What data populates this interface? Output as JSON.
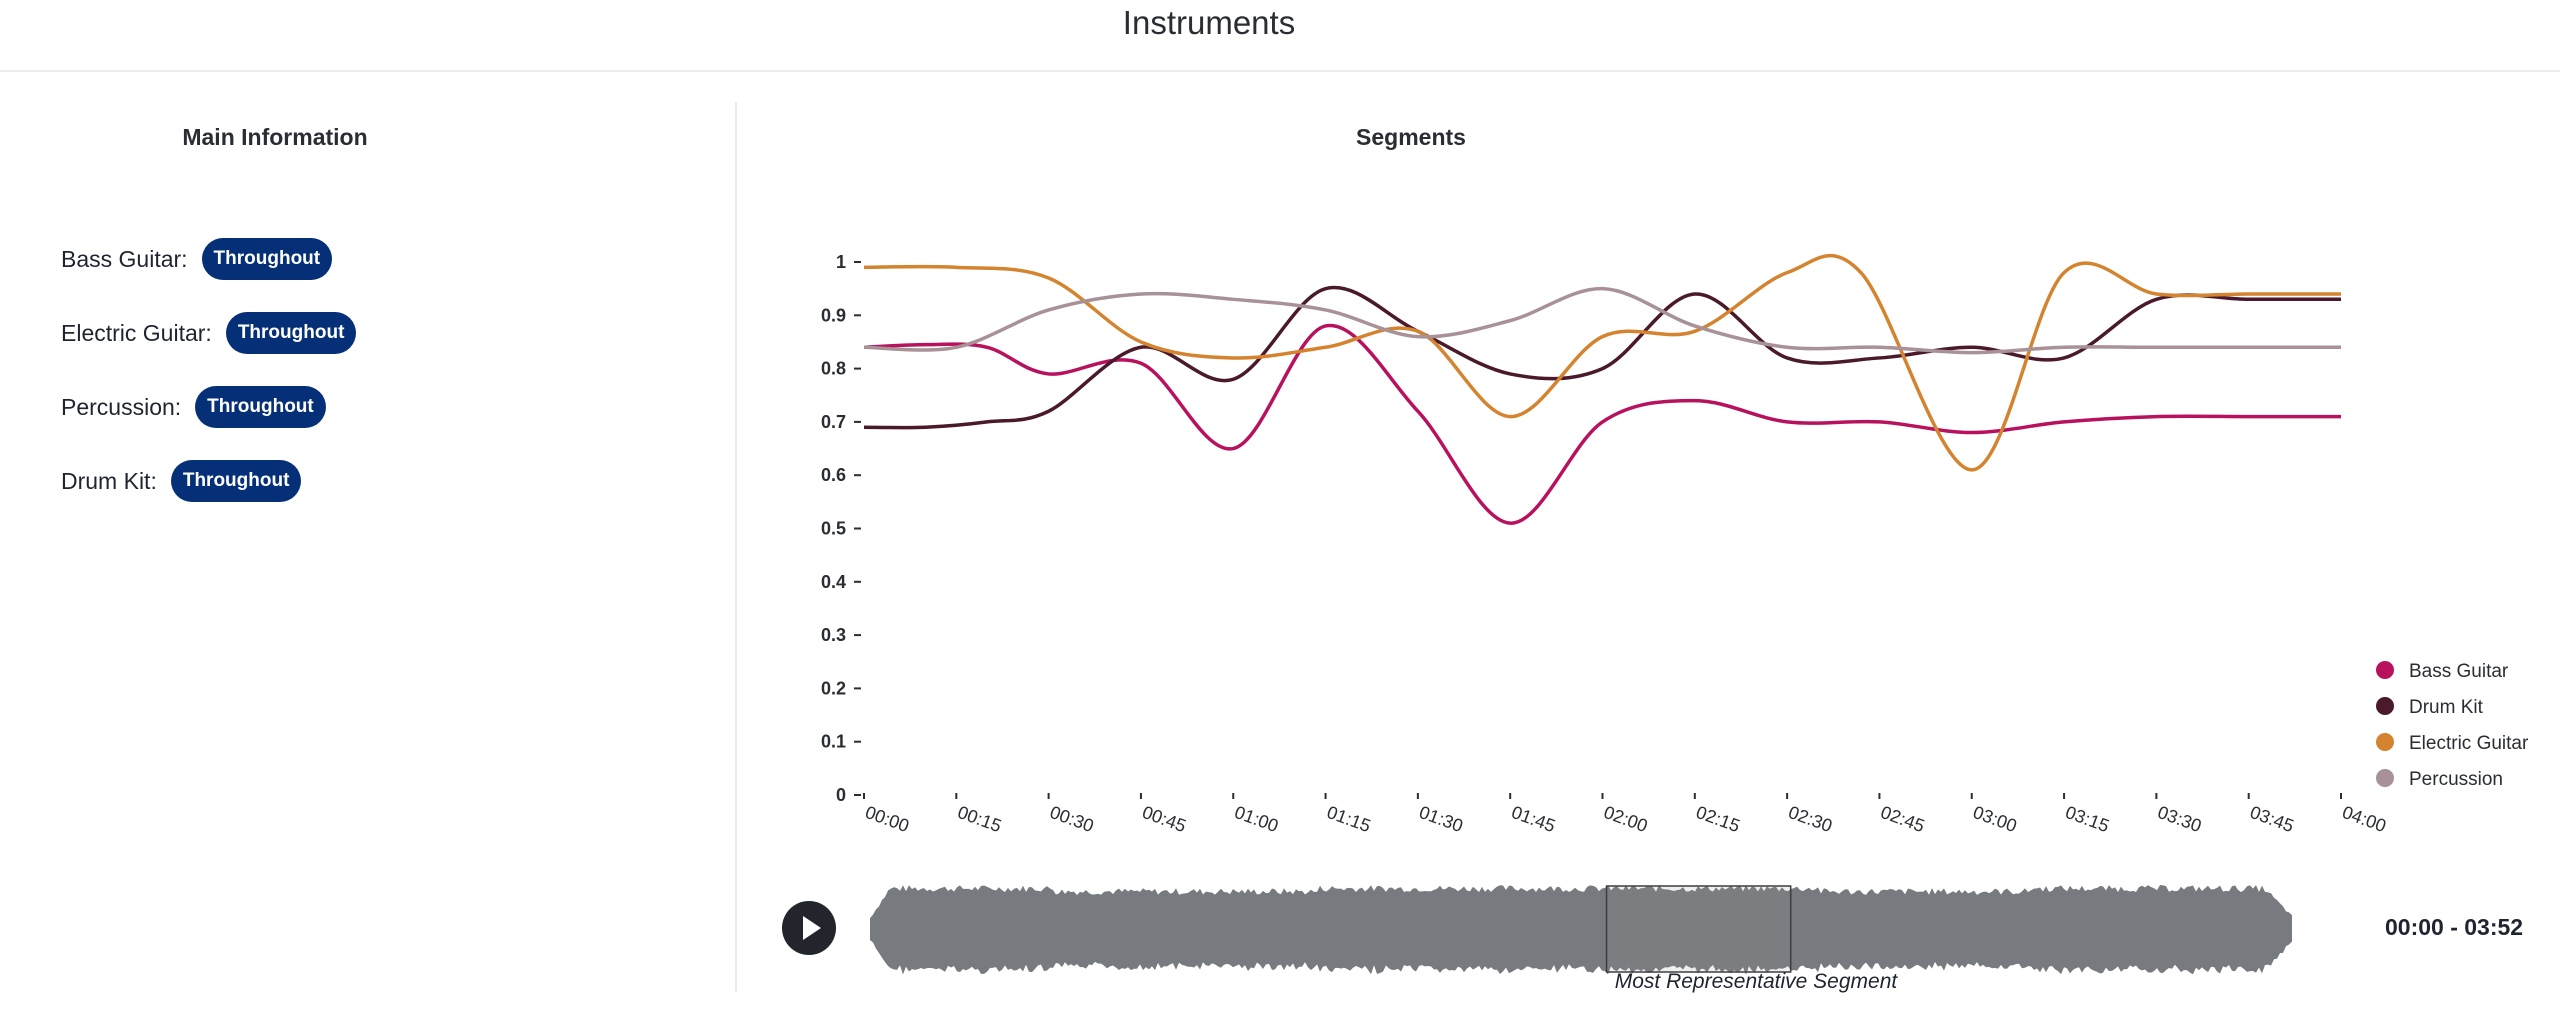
{
  "page": {
    "title": "Instruments"
  },
  "main_info": {
    "title": "Main Information",
    "instruments": [
      {
        "label": "Bass Guitar:",
        "badge": "Throughout"
      },
      {
        "label": "Electric Guitar:",
        "badge": "Throughout"
      },
      {
        "label": "Percussion:",
        "badge": "Throughout"
      },
      {
        "label": "Drum Kit:",
        "badge": "Throughout"
      }
    ]
  },
  "segments": {
    "title": "Segments",
    "player": {
      "time_range": "00:00 - 03:52",
      "representative_label": "Most Representative Segment",
      "play_icon": "play-icon",
      "representative_start": "02:00",
      "representative_end": "02:30",
      "waveform_color": "#777a7e"
    }
  },
  "chart_data": {
    "type": "line",
    "title": "",
    "xlabel": "",
    "ylabel": "",
    "x_ticks": [
      "00:00",
      "00:15",
      "00:30",
      "00:45",
      "01:00",
      "01:15",
      "01:30",
      "01:45",
      "02:00",
      "02:15",
      "02:30",
      "02:45",
      "03:00",
      "03:15",
      "03:30",
      "03:45",
      "04:00"
    ],
    "y_ticks": [
      "0",
      "0.1",
      "0.2",
      "0.3",
      "0.4",
      "0.5",
      "0.6",
      "0.7",
      "0.8",
      "0.9",
      "1"
    ],
    "ylim": [
      0,
      1
    ],
    "xlim_seconds": [
      0,
      240
    ],
    "grid": false,
    "legend_position": "bottom-right",
    "series": [
      {
        "name": "Bass Guitar",
        "color": "#b8125e",
        "points": [
          [
            0,
            0.84
          ],
          [
            10,
            0.845
          ],
          [
            20,
            0.84
          ],
          [
            30,
            0.79
          ],
          [
            45,
            0.81
          ],
          [
            60,
            0.65
          ],
          [
            75,
            0.88
          ],
          [
            90,
            0.72
          ],
          [
            105,
            0.51
          ],
          [
            120,
            0.7
          ],
          [
            135,
            0.74
          ],
          [
            150,
            0.7
          ],
          [
            165,
            0.7
          ],
          [
            180,
            0.68
          ],
          [
            195,
            0.7
          ],
          [
            210,
            0.71
          ],
          [
            225,
            0.71
          ],
          [
            240,
            0.71
          ]
        ]
      },
      {
        "name": "Drum Kit",
        "color": "#4a1a2c",
        "points": [
          [
            0,
            0.69
          ],
          [
            10,
            0.69
          ],
          [
            20,
            0.7
          ],
          [
            30,
            0.72
          ],
          [
            45,
            0.84
          ],
          [
            60,
            0.78
          ],
          [
            75,
            0.95
          ],
          [
            90,
            0.87
          ],
          [
            105,
            0.79
          ],
          [
            120,
            0.8
          ],
          [
            135,
            0.94
          ],
          [
            150,
            0.82
          ],
          [
            165,
            0.82
          ],
          [
            180,
            0.84
          ],
          [
            195,
            0.82
          ],
          [
            210,
            0.93
          ],
          [
            225,
            0.93
          ],
          [
            240,
            0.93
          ]
        ]
      },
      {
        "name": "Electric Guitar",
        "color": "#d4832f",
        "points": [
          [
            0,
            0.99
          ],
          [
            15,
            0.99
          ],
          [
            30,
            0.97
          ],
          [
            45,
            0.85
          ],
          [
            60,
            0.82
          ],
          [
            75,
            0.84
          ],
          [
            90,
            0.87
          ],
          [
            105,
            0.71
          ],
          [
            120,
            0.86
          ],
          [
            135,
            0.87
          ],
          [
            150,
            0.98
          ],
          [
            162,
            0.98
          ],
          [
            180,
            0.61
          ],
          [
            195,
            0.98
          ],
          [
            210,
            0.94
          ],
          [
            225,
            0.94
          ],
          [
            240,
            0.94
          ]
        ]
      },
      {
        "name": "Percussion",
        "color": "#a89197",
        "points": [
          [
            0,
            0.84
          ],
          [
            15,
            0.84
          ],
          [
            30,
            0.91
          ],
          [
            45,
            0.94
          ],
          [
            60,
            0.93
          ],
          [
            75,
            0.91
          ],
          [
            90,
            0.86
          ],
          [
            105,
            0.89
          ],
          [
            120,
            0.95
          ],
          [
            135,
            0.88
          ],
          [
            150,
            0.84
          ],
          [
            165,
            0.84
          ],
          [
            180,
            0.83
          ],
          [
            195,
            0.84
          ],
          [
            210,
            0.84
          ],
          [
            225,
            0.84
          ],
          [
            240,
            0.84
          ]
        ]
      }
    ]
  }
}
